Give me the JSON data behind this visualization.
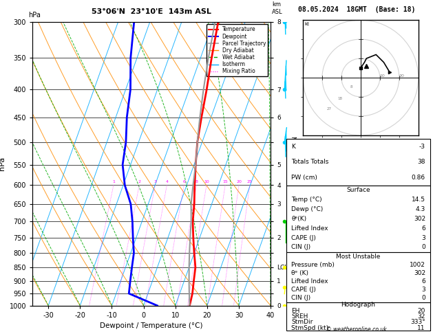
{
  "title_left": "53°06'N  23°10'E  143m ASL",
  "title_right": "08.05.2024  18GMT  (Base: 18)",
  "xlabel": "Dewpoint / Temperature (°C)",
  "pressure_levels": [
    300,
    350,
    400,
    450,
    500,
    550,
    600,
    650,
    700,
    750,
    800,
    850,
    900,
    950,
    1000
  ],
  "km_labels": {
    "300": "8",
    "350": "",
    "400": "7",
    "450": "6",
    "500": "",
    "550": "5",
    "600": "4",
    "650": "3",
    "700": "",
    "750": "2",
    "800": "",
    "850": "LCL",
    "900": "1",
    "950": "",
    "1000": "0"
  },
  "temp_p": [
    300,
    350,
    400,
    450,
    500,
    550,
    600,
    650,
    700,
    750,
    800,
    850,
    900,
    950,
    1000
  ],
  "temp_T": [
    -8.5,
    -6.5,
    -4.5,
    -3.0,
    -1.5,
    0.5,
    2.5,
    4.5,
    6.0,
    8.0,
    10.0,
    12.0,
    13.0,
    14.0,
    14.5
  ],
  "dewp_p": [
    300,
    350,
    400,
    450,
    500,
    550,
    600,
    650,
    700,
    750,
    800,
    850,
    900,
    950,
    1000
  ],
  "dewp_T": [
    -35.0,
    -32.0,
    -28.5,
    -26.5,
    -24.0,
    -22.5,
    -19.5,
    -15.5,
    -13.0,
    -11.0,
    -9.0,
    -8.0,
    -7.0,
    -6.0,
    4.3
  ],
  "parcel_p": [
    300,
    350,
    400,
    450,
    500,
    550,
    600,
    650,
    700,
    750,
    800,
    850,
    900,
    950,
    1000
  ],
  "parcel_T": [
    -9.5,
    -7.5,
    -5.5,
    -3.5,
    -1.5,
    0.5,
    2.0,
    3.5,
    5.5,
    7.0,
    8.5,
    10.0,
    11.5,
    13.0,
    14.5
  ],
  "xmin": -35,
  "xmax": 40,
  "pmin": 300,
  "pmax": 1000,
  "skew_factor": 32,
  "color_temp": "#ff0000",
  "color_dewp": "#0000ff",
  "color_parcel": "#999999",
  "color_dry_adiabat": "#ff8c00",
  "color_wet_adiabat": "#00aa00",
  "color_isotherm": "#00aaff",
  "color_mixing": "#ff00ff",
  "info_k": -3,
  "info_totals_totals": 38,
  "info_pw": "0.86",
  "surface_temp": "14.5",
  "surface_dewp": "4.3",
  "surface_theta_e": "302",
  "surface_lifted_index": "6",
  "surface_cape": "3",
  "surface_cin": "0",
  "mu_pressure": "1002",
  "mu_theta_e": "302",
  "mu_lifted_index": "6",
  "mu_cape": "3",
  "mu_cin": "0",
  "hodo_eh": "20",
  "hodo_sreh": "32",
  "hodo_stmdir": "333°",
  "hodo_stmspd": "11",
  "wind_barbs_right": [
    {
      "p": 300,
      "speed": 30,
      "dir": 300,
      "color": "#00ccff"
    },
    {
      "p": 400,
      "speed": 25,
      "dir": 310,
      "color": "#00ccff"
    },
    {
      "p": 500,
      "speed": 20,
      "dir": 290,
      "color": "#00ccff"
    },
    {
      "p": 700,
      "speed": 15,
      "dir": 270,
      "color": "#00cc00"
    },
    {
      "p": 850,
      "speed": 5,
      "dir": 200,
      "color": "#ffff00"
    },
    {
      "p": 925,
      "speed": 8,
      "dir": 190,
      "color": "#ffff00"
    },
    {
      "p": 1000,
      "speed": 10,
      "dir": 180,
      "color": "#ffff00"
    }
  ]
}
